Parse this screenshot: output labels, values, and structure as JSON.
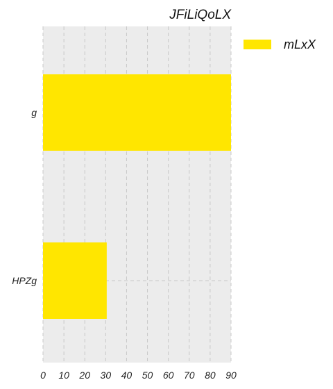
{
  "chart_data": {
    "type": "bar",
    "orientation": "horizontal",
    "title": "JFiLiQoLX",
    "categories": [
      "g",
      "HPZg"
    ],
    "series": [
      {
        "name": "mLxX",
        "values": [
          90,
          30.5
        ],
        "color": "#ffe600"
      }
    ],
    "xlim": [
      0,
      90
    ],
    "xticks": [
      0,
      10,
      20,
      30,
      40,
      50,
      60,
      70,
      80,
      90
    ],
    "xlabel": "",
    "ylabel": "",
    "grid": true,
    "legend_position": "top-right",
    "background_color": "#ececec"
  }
}
